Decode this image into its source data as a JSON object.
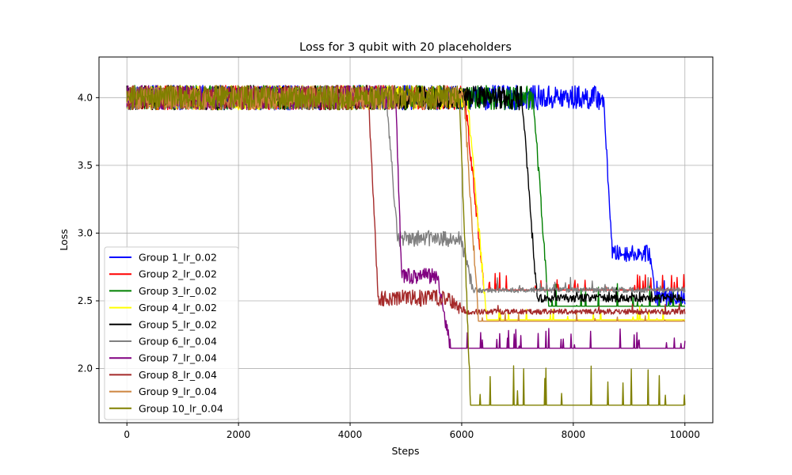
{
  "chart_data": {
    "type": "line",
    "title": "Loss for 3 qubit with 20 placeholders",
    "xlabel": "Steps",
    "ylabel": "Loss",
    "xlim": [
      -500,
      10500
    ],
    "ylim": [
      1.6,
      4.3
    ],
    "xticks": [
      0,
      2000,
      4000,
      6000,
      8000,
      10000
    ],
    "xtick_labels": [
      "0",
      "2000",
      "4000",
      "6000",
      "8000",
      "10000"
    ],
    "yticks": [
      2.0,
      2.5,
      3.0,
      3.5,
      4.0
    ],
    "ytick_labels": [
      "2.0",
      "2.5",
      "3.0",
      "3.5",
      "4.0"
    ],
    "grid": true,
    "legend_position": "lower-left",
    "series": [
      {
        "name": "Group 1_lr_0.02",
        "color": "#0000ff",
        "end": 10000,
        "plateau": 4.0,
        "noise1": 0.09,
        "drops": [
          {
            "start": 8540,
            "end": 8700,
            "to": 2.85
          },
          {
            "start": 9370,
            "end": 9480,
            "to": 2.52
          }
        ],
        "noise2": 0.06,
        "spike_p": 0.05,
        "spike_max": 0.17
      },
      {
        "name": "Group 2_lr_0.02",
        "color": "#ff0000",
        "end": 10000,
        "plateau": 4.0,
        "noise1": 0.09,
        "drops": [
          {
            "start": 6060,
            "end": 6400,
            "to": 2.58
          }
        ],
        "noise2": 0.0,
        "spike_p": 0.07,
        "spike_max": 0.13
      },
      {
        "name": "Group 3_lr_0.02",
        "color": "#008000",
        "end": 10000,
        "plateau": 4.0,
        "noise1": 0.09,
        "drops": [
          {
            "start": 7280,
            "end": 7560,
            "to": 2.46
          }
        ],
        "noise2": 0.0,
        "spike_p": 0.05,
        "spike_max": 0.2
      },
      {
        "name": "Group 4_lr_0.02",
        "color": "#ffff00",
        "end": 10000,
        "plateau": 4.0,
        "noise1": 0.09,
        "drops": [
          {
            "start": 6100,
            "end": 6450,
            "to": 2.36
          }
        ],
        "noise2": 0.0,
        "spike_p": 0.06,
        "spike_max": 0.1
      },
      {
        "name": "Group 5_lr_0.02",
        "color": "#000000",
        "end": 10000,
        "plateau": 4.0,
        "noise1": 0.09,
        "drops": [
          {
            "start": 7080,
            "end": 7350,
            "to": 2.52
          }
        ],
        "noise2": 0.03,
        "spike_p": 0.04,
        "spike_max": 0.08
      },
      {
        "name": "Group 6_lr_0.04",
        "color": "#808080",
        "end": 10000,
        "plateau": 4.0,
        "noise1": 0.09,
        "drops": [
          {
            "start": 4650,
            "end": 4850,
            "to": 2.96
          },
          {
            "start": 5980,
            "end": 6200,
            "to": 2.58
          }
        ],
        "noise2": 0.02,
        "spike_p": 0.07,
        "spike_max": 0.1
      },
      {
        "name": "Group 7_lr_0.04",
        "color": "#800080",
        "end": 10000,
        "plateau": 4.0,
        "noise1": 0.09,
        "drops": [
          {
            "start": 4820,
            "end": 4920,
            "to": 2.68
          },
          {
            "start": 5560,
            "end": 5800,
            "to": 2.15
          }
        ],
        "noise2": 0.0,
        "spike_p": 0.05,
        "spike_max": 0.15
      },
      {
        "name": "Group 8_lr_0.04",
        "color": "#a52a2a",
        "end": 10000,
        "plateau": 4.0,
        "noise1": 0.09,
        "drops": [
          {
            "start": 4330,
            "end": 4500,
            "to": 2.52
          },
          {
            "start": 5730,
            "end": 6050,
            "to": 2.42
          }
        ],
        "noise2": 0.02,
        "spike_p": 0.03,
        "spike_max": 0.06
      },
      {
        "name": "Group 9_lr_0.04",
        "color": "#cd853f",
        "end": 10000,
        "plateau": 4.0,
        "noise1": 0.09,
        "drops": [
          {
            "start": 6040,
            "end": 6300,
            "to": 2.35
          }
        ],
        "noise2": 0.0,
        "spike_p": 0.03,
        "spike_max": 0.06
      },
      {
        "name": "Group 10_lr_0.04",
        "color": "#808000",
        "end": 10000,
        "plateau": 4.0,
        "noise1": 0.09,
        "drops": [
          {
            "start": 5960,
            "end": 6160,
            "to": 1.73
          }
        ],
        "noise2": 0.0,
        "spike_p": 0.04,
        "spike_max": 0.3
      }
    ]
  }
}
